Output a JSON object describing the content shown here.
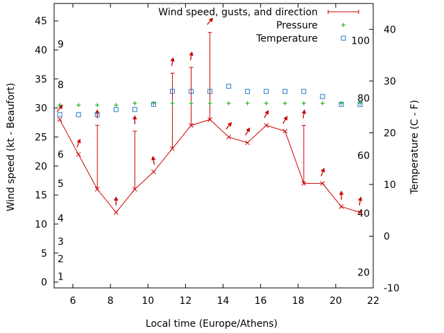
{
  "chart_data": {
    "type": "line",
    "xlabel": "Local time (Europe/Athens)",
    "ylabel": "Wind speed (kt - Beaufort)",
    "y2label": "Temperature (C - F)",
    "xlim": [
      5,
      22
    ],
    "ylim": [
      -1,
      48
    ],
    "y2lim": [
      -10,
      45
    ],
    "x_ticks": [
      6,
      8,
      10,
      12,
      14,
      16,
      18,
      20,
      22
    ],
    "y_ticks": [
      0,
      5,
      10,
      15,
      20,
      25,
      30,
      35,
      40,
      45
    ],
    "y2_ticks": [
      -10,
      0,
      10,
      20,
      30,
      40
    ],
    "beaufort_labels": [
      {
        "label": "1",
        "y": 1
      },
      {
        "label": "2",
        "y": 4
      },
      {
        "label": "3",
        "y": 7
      },
      {
        "label": "4",
        "y": 11
      },
      {
        "label": "5",
        "y": 17
      },
      {
        "label": "6",
        "y": 22
      },
      {
        "label": "8",
        "y": 34
      },
      {
        "label": "9",
        "y": 41
      }
    ],
    "fahrenheit_labels": [
      {
        "label": "20",
        "y2": -7
      },
      {
        "label": "40",
        "y2": 4.4
      },
      {
        "label": "60",
        "y2": 15.6
      },
      {
        "label": "80",
        "y2": 26.7
      },
      {
        "label": "100",
        "y2": 37.8
      }
    ],
    "legend": [
      {
        "name": "Wind speed, gusts, and direction",
        "color": "#cc0000",
        "marker": "line"
      },
      {
        "name": "Pressure",
        "color": "#00aa00",
        "marker": "plus"
      },
      {
        "name": "Temperature",
        "color": "#1f78c8",
        "marker": "square"
      }
    ],
    "legend_position": "top-right",
    "wind": [
      {
        "x": 5.3,
        "speed": 28,
        "gust": 28,
        "dir": 220
      },
      {
        "x": 6.3,
        "speed": 22,
        "gust": 22,
        "dir": 200
      },
      {
        "x": 7.3,
        "speed": 16,
        "gust": 27,
        "dir": 180
      },
      {
        "x": 8.3,
        "speed": 12,
        "gust": 12,
        "dir": 180
      },
      {
        "x": 9.3,
        "speed": 16,
        "gust": 26,
        "dir": 180
      },
      {
        "x": 10.3,
        "speed": 19,
        "gust": 19,
        "dir": 170
      },
      {
        "x": 11.3,
        "speed": 23,
        "gust": 36,
        "dir": 190
      },
      {
        "x": 12.3,
        "speed": 27,
        "gust": 37,
        "dir": 190
      },
      {
        "x": 13.3,
        "speed": 28,
        "gust": 43,
        "dir": 220
      },
      {
        "x": 14.3,
        "speed": 25,
        "gust": 25,
        "dir": 220
      },
      {
        "x": 15.3,
        "speed": 24,
        "gust": 24,
        "dir": 210
      },
      {
        "x": 16.3,
        "speed": 27,
        "gust": 27,
        "dir": 210
      },
      {
        "x": 17.3,
        "speed": 26,
        "gust": 26,
        "dir": 210
      },
      {
        "x": 18.3,
        "speed": 17,
        "gust": 27,
        "dir": 190
      },
      {
        "x": 19.3,
        "speed": 17,
        "gust": 17,
        "dir": 200
      },
      {
        "x": 20.3,
        "speed": 13,
        "gust": 13,
        "dir": 180
      },
      {
        "x": 21.3,
        "speed": 12,
        "gust": 12,
        "dir": 190
      }
    ],
    "pressure": [
      {
        "x": 5.3,
        "y": 30.5
      },
      {
        "x": 6.3,
        "y": 30.5
      },
      {
        "x": 7.3,
        "y": 30.5
      },
      {
        "x": 8.3,
        "y": 30.5
      },
      {
        "x": 9.3,
        "y": 30.8
      },
      {
        "x": 10.3,
        "y": 30.8
      },
      {
        "x": 11.3,
        "y": 30.8
      },
      {
        "x": 12.3,
        "y": 30.8
      },
      {
        "x": 13.3,
        "y": 30.8
      },
      {
        "x": 14.3,
        "y": 30.8
      },
      {
        "x": 15.3,
        "y": 30.8
      },
      {
        "x": 16.3,
        "y": 30.8
      },
      {
        "x": 17.3,
        "y": 30.8
      },
      {
        "x": 18.3,
        "y": 30.8
      },
      {
        "x": 19.3,
        "y": 30.8
      },
      {
        "x": 20.3,
        "y": 30.8
      },
      {
        "x": 21.3,
        "y": 30.8
      }
    ],
    "temperature": [
      {
        "x": 5.3,
        "y2": 23.5
      },
      {
        "x": 6.3,
        "y2": 23.5
      },
      {
        "x": 7.3,
        "y2": 23.5
      },
      {
        "x": 8.3,
        "y2": 24.5
      },
      {
        "x": 9.3,
        "y2": 24.5
      },
      {
        "x": 10.3,
        "y2": 25.5
      },
      {
        "x": 11.3,
        "y2": 28
      },
      {
        "x": 12.3,
        "y2": 28
      },
      {
        "x": 13.3,
        "y2": 28
      },
      {
        "x": 14.3,
        "y2": 29
      },
      {
        "x": 15.3,
        "y2": 28
      },
      {
        "x": 16.3,
        "y2": 28
      },
      {
        "x": 17.3,
        "y2": 28
      },
      {
        "x": 18.3,
        "y2": 28
      },
      {
        "x": 19.3,
        "y2": 27
      },
      {
        "x": 20.3,
        "y2": 25.5
      },
      {
        "x": 21.3,
        "y2": 25.5
      }
    ]
  }
}
